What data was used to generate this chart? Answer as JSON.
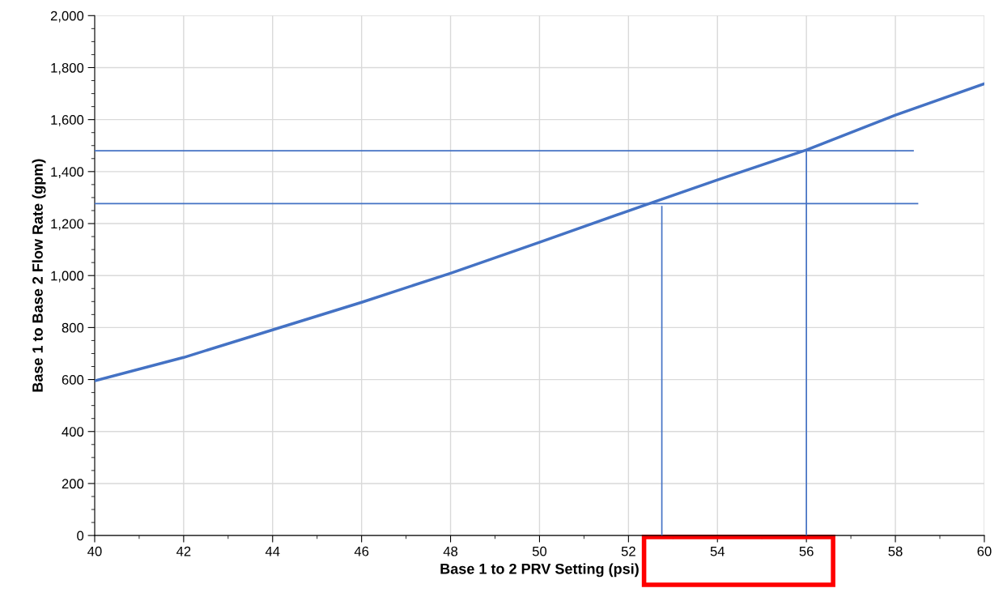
{
  "chart_data": {
    "type": "line",
    "xlabel": "Base 1 to 2 PRV Setting (psi)",
    "ylabel": "Base 1 to Base 2 Flow Rate (gpm)",
    "x": [
      40,
      42,
      44,
      46,
      48,
      50,
      52,
      54,
      56,
      58,
      60
    ],
    "series": [
      {
        "color": "#4472c4",
        "values": [
          595,
          685,
          791,
          897,
          1009,
          1128,
          1249,
          1368,
          1483,
          1617,
          1738
        ]
      },
      {
        "color": "#4472c4",
        "x": [
          40,
          58.4
        ],
        "values": [
          1480,
          1480
        ]
      },
      {
        "color": "#4472c4",
        "x": [
          40,
          58.5
        ],
        "values": [
          1277,
          1277
        ]
      },
      {
        "color": "#4472c4",
        "x": [
          52.75,
          52.75
        ],
        "values": [
          0,
          1265
        ]
      },
      {
        "color": "#4472c4",
        "x": [
          56,
          56
        ],
        "values": [
          0,
          1480
        ]
      }
    ],
    "xlim": [
      40,
      60
    ],
    "xticks": [
      40,
      42,
      44,
      46,
      48,
      50,
      52,
      54,
      56,
      58,
      60
    ],
    "ylim": [
      0,
      2000
    ],
    "yticks": [
      0,
      200,
      400,
      600,
      800,
      {
        "value": 1000,
        "label": "1,000"
      },
      {
        "value": 1200,
        "label": "1,200"
      },
      {
        "value": 1400,
        "label": "1,400"
      },
      {
        "value": 1600,
        "label": "1,600"
      },
      {
        "value": 1800,
        "label": "1,800"
      },
      {
        "value": 2000,
        "label": "2,000"
      }
    ],
    "grid": true,
    "marker": "none",
    "line_style": "solid"
  }
}
